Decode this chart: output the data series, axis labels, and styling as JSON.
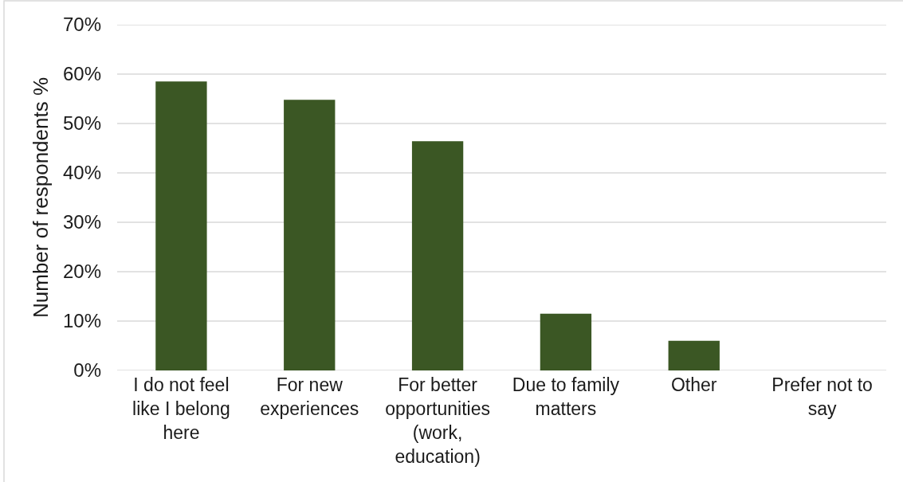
{
  "chart_data": {
    "type": "bar",
    "categories": [
      "I do not feel like I belong here",
      "For new experiences",
      "For better opportunities (work, education)",
      "Due to family matters",
      "Other",
      "Prefer not to say"
    ],
    "values": [
      58.5,
      54.8,
      46.4,
      11.5,
      6.0,
      0
    ],
    "color": "#3b5724",
    "ylabel": "Number of respondents %",
    "ylim": [
      0,
      70
    ],
    "yticks": [
      {
        "value": 0,
        "label": "0%"
      },
      {
        "value": 10,
        "label": "10%"
      },
      {
        "value": 20,
        "label": "20%"
      },
      {
        "value": 30,
        "label": "30%"
      },
      {
        "value": 40,
        "label": "40%"
      },
      {
        "value": 50,
        "label": "50%"
      },
      {
        "value": 60,
        "label": "60%"
      },
      {
        "value": 70,
        "label": "70%"
      }
    ],
    "grid": "y"
  }
}
